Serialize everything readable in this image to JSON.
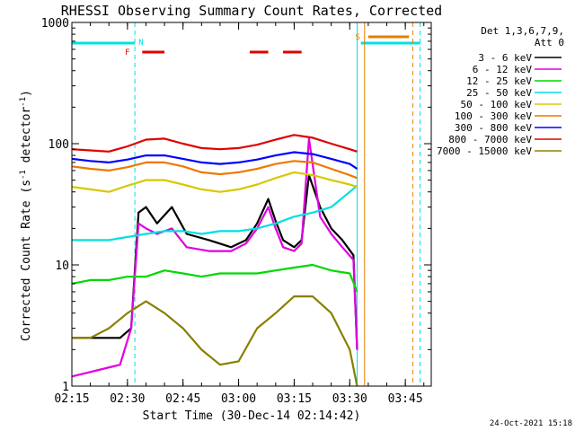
{
  "chart_data": {
    "type": "line",
    "title": "RHESSI Observing Summary Count Rates, Corrected",
    "xlabel": "Start Time (30-Dec-14 02:14:42)",
    "ylabel": "Corrected Count Rate (s",
    "ylabel_sup": "-1",
    "ylabel_tail": " detector",
    "ylabel_close": ")",
    "y_scale": "log",
    "ylim": [
      1,
      1000
    ],
    "xlim": [
      "02:15",
      "03:52"
    ],
    "x_ticks": [
      "02:15",
      "02:30",
      "02:45",
      "03:00",
      "03:15",
      "03:30",
      "03:45"
    ],
    "y_ticks": [
      "1",
      "10",
      "100",
      "1000"
    ],
    "legend_header": [
      "Det 1,3,6,7,9,",
      "Att 0"
    ],
    "footer_date": "24-Oct-2021 15:18",
    "attenuator_labels": [
      "N",
      "F",
      "S"
    ],
    "colors": {
      "3-6": "#000000",
      "6-12": "#e000e0",
      "12-25": "#00d800",
      "25-50": "#00e0e0",
      "50-100": "#d8c800",
      "100-300": "#f07800",
      "300-800": "#0000ff",
      "800-7000": "#e00000",
      "7000-15000": "#888000",
      "attenuator": "#00e0e0",
      "saa": "#e08000",
      "flare": "#e00000"
    },
    "series": [
      {
        "name": "3 - 6 keV",
        "key": "3-6",
        "color": "#000000",
        "x": [
          "02:15",
          "02:28",
          "02:31",
          "02:33",
          "02:35",
          "02:38",
          "02:42",
          "02:46",
          "02:52",
          "02:58",
          "03:02",
          "03:05",
          "03:08",
          "03:10",
          "03:12",
          "03:15",
          "03:17",
          "03:19",
          "03:22",
          "03:25",
          "03:28",
          "03:31",
          "03:32"
        ],
        "y": [
          2.5,
          2.5,
          3,
          27,
          30,
          22,
          30,
          18,
          16,
          14,
          16,
          22,
          35,
          23,
          16,
          14,
          16,
          55,
          30,
          20,
          16,
          12,
          2
        ]
      },
      {
        "name": "6 - 12 keV",
        "key": "6-12",
        "color": "#e000e0",
        "x": [
          "02:15",
          "02:28",
          "02:31",
          "02:33",
          "02:35",
          "02:38",
          "02:42",
          "02:46",
          "02:52",
          "02:58",
          "03:02",
          "03:05",
          "03:08",
          "03:10",
          "03:12",
          "03:15",
          "03:17",
          "03:19",
          "03:22",
          "03:25",
          "03:28",
          "03:31",
          "03:32"
        ],
        "y": [
          1.2,
          1.5,
          3,
          22,
          20,
          18,
          20,
          14,
          13,
          13,
          15,
          20,
          30,
          20,
          14,
          13,
          15,
          110,
          25,
          18,
          14,
          11,
          2
        ]
      },
      {
        "name": "12 - 25 keV",
        "key": "12-25",
        "color": "#00d800",
        "x": [
          "02:15",
          "02:20",
          "02:25",
          "02:30",
          "02:35",
          "02:40",
          "02:45",
          "02:50",
          "02:55",
          "03:00",
          "03:05",
          "03:10",
          "03:15",
          "03:20",
          "03:25",
          "03:30",
          "03:32"
        ],
        "y": [
          7,
          7.5,
          7.5,
          8,
          8,
          9,
          8.5,
          8,
          8.5,
          8.5,
          8.5,
          9,
          9.5,
          10,
          9,
          8.5,
          6
        ]
      },
      {
        "name": "25 - 50 keV",
        "key": "25-50",
        "color": "#00e0e0",
        "x": [
          "02:15",
          "02:20",
          "02:25",
          "02:30",
          "02:35",
          "02:40",
          "02:45",
          "02:50",
          "02:55",
          "03:00",
          "03:05",
          "03:10",
          "03:15",
          "03:20",
          "03:25",
          "03:30",
          "03:32"
        ],
        "y": [
          16,
          16,
          16,
          17,
          18,
          19,
          19,
          18,
          19,
          19,
          20,
          22,
          25,
          27,
          30,
          40,
          45
        ]
      },
      {
        "name": "50 - 100 keV",
        "key": "50-100",
        "color": "#d8c800",
        "x": [
          "02:15",
          "02:20",
          "02:25",
          "02:30",
          "02:35",
          "02:40",
          "02:45",
          "02:50",
          "02:55",
          "03:00",
          "03:05",
          "03:10",
          "03:15",
          "03:20",
          "03:25",
          "03:30",
          "03:32"
        ],
        "y": [
          44,
          42,
          40,
          45,
          50,
          50,
          46,
          42,
          40,
          42,
          46,
          52,
          58,
          55,
          50,
          46,
          44
        ]
      },
      {
        "name": "100 - 300 keV",
        "key": "100-300",
        "color": "#f07800",
        "x": [
          "02:15",
          "02:20",
          "02:25",
          "02:30",
          "02:35",
          "02:40",
          "02:45",
          "02:50",
          "02:55",
          "03:00",
          "03:05",
          "03:10",
          "03:15",
          "03:20",
          "03:25",
          "03:30",
          "03:32"
        ],
        "y": [
          65,
          62,
          60,
          64,
          70,
          70,
          65,
          58,
          56,
          58,
          62,
          68,
          72,
          70,
          62,
          55,
          52
        ]
      },
      {
        "name": "300 - 800 keV",
        "key": "300-800",
        "color": "#0000ff",
        "x": [
          "02:15",
          "02:20",
          "02:25",
          "02:30",
          "02:35",
          "02:40",
          "02:45",
          "02:50",
          "02:55",
          "03:00",
          "03:05",
          "03:10",
          "03:15",
          "03:20",
          "03:25",
          "03:30",
          "03:32"
        ],
        "y": [
          75,
          72,
          70,
          74,
          80,
          80,
          75,
          70,
          68,
          70,
          74,
          80,
          85,
          82,
          75,
          68,
          62
        ]
      },
      {
        "name": "800 - 7000 keV",
        "key": "800-7000",
        "color": "#e00000",
        "x": [
          "02:15",
          "02:20",
          "02:25",
          "02:30",
          "02:35",
          "02:40",
          "02:45",
          "02:50",
          "02:55",
          "03:00",
          "03:05",
          "03:10",
          "03:15",
          "03:20",
          "03:25",
          "03:30",
          "03:32"
        ],
        "y": [
          90,
          88,
          86,
          95,
          108,
          110,
          100,
          92,
          90,
          92,
          98,
          108,
          118,
          112,
          100,
          90,
          86
        ]
      },
      {
        "name": "7000 - 15000 keV",
        "key": "7000-15000",
        "color": "#888000",
        "x": [
          "02:15",
          "02:20",
          "02:25",
          "02:30",
          "02:35",
          "02:40",
          "02:45",
          "02:50",
          "02:55",
          "03:00",
          "03:05",
          "03:10",
          "03:15",
          "03:20",
          "03:25",
          "03:30",
          "03:32"
        ],
        "y": [
          2.5,
          2.5,
          3,
          4,
          5,
          4,
          3,
          2,
          1.5,
          1.6,
          3,
          4,
          5.5,
          5.5,
          4,
          2,
          1
        ]
      }
    ]
  }
}
